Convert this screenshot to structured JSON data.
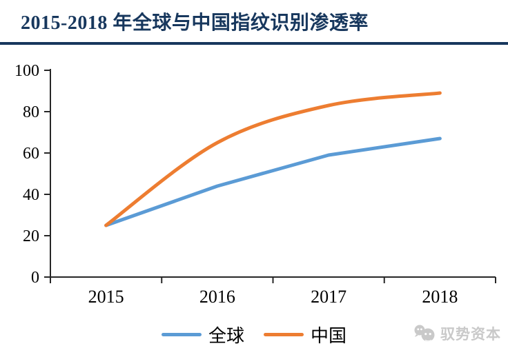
{
  "header": {
    "title": "2015-2018 年全球与中国指纹识别渗透率",
    "title_color": "#17375D",
    "divider_color": "#17375D"
  },
  "chart_data": {
    "type": "line",
    "title": "2015-2018 年全球与中国指纹识别渗透率",
    "categories": [
      "2015",
      "2016",
      "2017",
      "2018"
    ],
    "series": [
      {
        "name": "全球",
        "color": "#5B9BD5",
        "smooth": false,
        "values": [
          25,
          44,
          59,
          67
        ]
      },
      {
        "name": "中国",
        "color": "#ED7D31",
        "smooth": true,
        "values": [
          25,
          65,
          83,
          89
        ]
      }
    ],
    "xlabel": "",
    "ylabel": "",
    "ylim": [
      0,
      100
    ],
    "yticks": [
      0,
      20,
      40,
      60,
      80,
      100
    ],
    "grid": false,
    "legend_position": "bottom",
    "axis_color": "#262626"
  },
  "watermark": {
    "text": "驭势资本",
    "color": "#C9C9C9"
  }
}
